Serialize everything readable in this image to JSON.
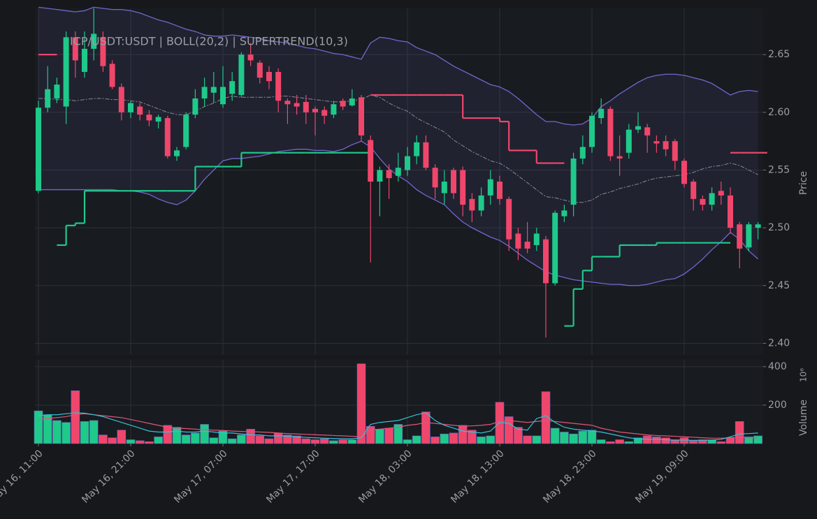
{
  "chart_data": [
    {
      "type": "candlestick",
      "title": "ICP/USDT:USDT | BOLL(20,2) | SUPERTREND(10,3)",
      "y_label": "Price",
      "ylim": [
        2.39,
        2.69
      ],
      "yticks": [
        {
          "value": 2.4,
          "label": "2.40"
        },
        2.45,
        {
          "value": 2.5,
          "label": "2.50"
        },
        2.55,
        {
          "value": 2.6,
          "label": "2.60"
        },
        2.65
      ],
      "grid": true,
      "up_color": "#1fc98a",
      "down_color": "#f0466b",
      "open": [
        2.532,
        2.604,
        2.612,
        2.605,
        2.665,
        2.635,
        2.655,
        2.665,
        2.642,
        2.622,
        2.6,
        2.605,
        2.598,
        2.592,
        2.595,
        2.562,
        2.57,
        2.598,
        2.612,
        2.617,
        2.607,
        2.616,
        2.615,
        2.65,
        2.643,
        2.635,
        2.635,
        2.61,
        2.608,
        2.609,
        2.603,
        2.602,
        2.598,
        2.61,
        2.606,
        2.613,
        2.576,
        2.54,
        2.55,
        2.545,
        2.55,
        2.562,
        2.574,
        2.552,
        2.53,
        2.55,
        2.55,
        2.525,
        2.515,
        2.528,
        2.54,
        2.525,
        2.495,
        2.488,
        2.485,
        2.49,
        2.452,
        2.51,
        2.52,
        2.56,
        2.57,
        2.595,
        2.603,
        2.562,
        2.565,
        2.585,
        2.587,
        2.575,
        2.575,
        2.575,
        2.558,
        2.54,
        2.525,
        2.52,
        2.532,
        2.528,
        2.503,
        2.483,
        2.5
      ],
      "high": [
        2.61,
        2.64,
        2.63,
        2.67,
        2.67,
        2.67,
        2.69,
        2.67,
        2.645,
        2.625,
        2.61,
        2.608,
        2.602,
        2.598,
        2.597,
        2.57,
        2.6,
        2.62,
        2.63,
        2.635,
        2.64,
        2.635,
        2.652,
        2.66,
        2.645,
        2.64,
        2.638,
        2.612,
        2.615,
        2.615,
        2.605,
        2.605,
        2.61,
        2.612,
        2.62,
        2.615,
        2.58,
        2.553,
        2.555,
        2.565,
        2.57,
        2.58,
        2.58,
        2.555,
        2.55,
        2.552,
        2.553,
        2.53,
        2.535,
        2.55,
        2.545,
        2.527,
        2.5,
        2.505,
        2.5,
        2.493,
        2.515,
        2.52,
        2.565,
        2.58,
        2.6,
        2.612,
        2.605,
        2.58,
        2.59,
        2.6,
        2.59,
        2.58,
        2.58,
        2.577,
        2.56,
        2.542,
        2.528,
        2.535,
        2.54,
        2.535,
        2.505,
        2.505,
        2.505
      ],
      "low": [
        2.53,
        2.6,
        2.608,
        2.59,
        2.63,
        2.63,
        2.645,
        2.635,
        2.62,
        2.593,
        2.595,
        2.593,
        2.588,
        2.586,
        2.56,
        2.558,
        2.568,
        2.595,
        2.605,
        2.608,
        2.604,
        2.61,
        2.613,
        2.64,
        2.625,
        2.62,
        2.6,
        2.59,
        2.598,
        2.59,
        2.58,
        2.59,
        2.595,
        2.602,
        2.605,
        2.575,
        2.47,
        2.51,
        2.525,
        2.54,
        2.545,
        2.555,
        2.55,
        2.525,
        2.52,
        2.525,
        2.51,
        2.505,
        2.51,
        2.52,
        2.52,
        2.48,
        2.472,
        2.478,
        2.48,
        2.405,
        2.45,
        2.505,
        2.51,
        2.555,
        2.565,
        2.59,
        2.558,
        2.545,
        2.56,
        2.582,
        2.565,
        2.565,
        2.562,
        2.55,
        2.535,
        2.515,
        2.515,
        2.515,
        2.52,
        2.495,
        2.465,
        2.48,
        2.49
      ],
      "close": [
        2.604,
        2.62,
        2.624,
        2.665,
        2.645,
        2.655,
        2.668,
        2.64,
        2.622,
        2.6,
        2.608,
        2.598,
        2.593,
        2.596,
        2.562,
        2.567,
        2.598,
        2.612,
        2.622,
        2.622,
        2.622,
        2.627,
        2.65,
        2.645,
        2.63,
        2.627,
        2.61,
        2.607,
        2.605,
        2.6,
        2.6,
        2.597,
        2.607,
        2.605,
        2.612,
        2.58,
        2.54,
        2.55,
        2.543,
        2.552,
        2.562,
        2.574,
        2.552,
        2.535,
        2.54,
        2.53,
        2.52,
        2.515,
        2.528,
        2.542,
        2.525,
        2.49,
        2.482,
        2.482,
        2.495,
        2.452,
        2.513,
        2.515,
        2.56,
        2.57,
        2.597,
        2.603,
        2.562,
        2.56,
        2.585,
        2.588,
        2.58,
        2.573,
        2.568,
        2.558,
        2.538,
        2.525,
        2.52,
        2.53,
        2.528,
        2.5,
        2.482,
        2.503,
        2.503
      ],
      "bollinger": {
        "color": "#7466cc",
        "middle_color": "#8a8a94",
        "fill": "rgba(110,100,200,0.10)",
        "upper": [
          2.691,
          2.69,
          2.689,
          2.688,
          2.687,
          2.688,
          2.691,
          2.69,
          2.689,
          2.689,
          2.688,
          2.686,
          2.683,
          2.68,
          2.678,
          2.675,
          2.672,
          2.67,
          2.667,
          2.666,
          2.666,
          2.667,
          2.666,
          2.665,
          2.664,
          2.662,
          2.661,
          2.66,
          2.658,
          2.656,
          2.655,
          2.653,
          2.651,
          2.65,
          2.648,
          2.646,
          2.66,
          2.665,
          2.664,
          2.662,
          2.661,
          2.656,
          2.653,
          2.65,
          2.645,
          2.64,
          2.636,
          2.632,
          2.628,
          2.624,
          2.622,
          2.618,
          2.612,
          2.605,
          2.598,
          2.592,
          2.592,
          2.59,
          2.589,
          2.59,
          2.595,
          2.605,
          2.61,
          2.616,
          2.621,
          2.626,
          2.63,
          2.632,
          2.633,
          2.633,
          2.632,
          2.63,
          2.628,
          2.625,
          2.62,
          2.615,
          2.618,
          2.619,
          2.618
        ],
        "middle": [
          2.612,
          2.612,
          2.611,
          2.611,
          2.61,
          2.611,
          2.612,
          2.612,
          2.611,
          2.611,
          2.61,
          2.609,
          2.606,
          2.603,
          2.6,
          2.598,
          2.598,
          2.601,
          2.605,
          2.608,
          2.612,
          2.614,
          2.613,
          2.613,
          2.613,
          2.613,
          2.614,
          2.614,
          2.613,
          2.612,
          2.611,
          2.61,
          2.609,
          2.609,
          2.61,
          2.611,
          2.615,
          2.613,
          2.608,
          2.604,
          2.601,
          2.595,
          2.591,
          2.587,
          2.583,
          2.576,
          2.571,
          2.566,
          2.562,
          2.558,
          2.556,
          2.551,
          2.545,
          2.539,
          2.533,
          2.527,
          2.526,
          2.524,
          2.522,
          2.522,
          2.524,
          2.529,
          2.531,
          2.534,
          2.536,
          2.538,
          2.541,
          2.543,
          2.544,
          2.545,
          2.546,
          2.548,
          2.551,
          2.553,
          2.554,
          2.556,
          2.554,
          2.55,
          2.546
        ],
        "lower": [
          2.533,
          2.533,
          2.533,
          2.533,
          2.533,
          2.533,
          2.533,
          2.533,
          2.533,
          2.532,
          2.532,
          2.531,
          2.529,
          2.525,
          2.522,
          2.52,
          2.524,
          2.532,
          2.542,
          2.55,
          2.558,
          2.56,
          2.56,
          2.561,
          2.562,
          2.564,
          2.566,
          2.567,
          2.568,
          2.568,
          2.567,
          2.567,
          2.566,
          2.568,
          2.572,
          2.575,
          2.57,
          2.56,
          2.551,
          2.545,
          2.54,
          2.533,
          2.528,
          2.524,
          2.52,
          2.512,
          2.505,
          2.5,
          2.496,
          2.492,
          2.489,
          2.484,
          2.478,
          2.472,
          2.467,
          2.462,
          2.459,
          2.457,
          2.455,
          2.454,
          2.453,
          2.452,
          2.451,
          2.451,
          2.45,
          2.45,
          2.451,
          2.453,
          2.455,
          2.456,
          2.46,
          2.466,
          2.473,
          2.481,
          2.488,
          2.496,
          2.49,
          2.48,
          2.473
        ]
      },
      "supertrend": {
        "up_color": "#1fc98a",
        "down_color": "#f0466b",
        "up": [
          null,
          null,
          2.485,
          2.502,
          2.504,
          2.532,
          2.532,
          2.532,
          2.532,
          2.532,
          2.532,
          2.532,
          2.532,
          2.532,
          2.532,
          2.532,
          2.532,
          2.553,
          2.553,
          2.553,
          2.553,
          2.553,
          2.565,
          2.565,
          2.565,
          2.565,
          2.565,
          2.565,
          2.565,
          2.565,
          2.565,
          2.565,
          2.565,
          2.565,
          2.565,
          2.565,
          null,
          null,
          null,
          null,
          null,
          null,
          null,
          null,
          null,
          null,
          null,
          null,
          null,
          null,
          null,
          null,
          null,
          null,
          null,
          null,
          null,
          2.415,
          2.447,
          2.463,
          2.475,
          2.475,
          2.475,
          2.485,
          2.485,
          2.485,
          2.485,
          2.487,
          2.487,
          2.487,
          2.487,
          2.487,
          2.487,
          2.487,
          2.487,
          null,
          null,
          null,
          null
        ],
        "down": [
          2.65,
          2.65,
          null,
          null,
          null,
          null,
          null,
          null,
          null,
          null,
          null,
          null,
          null,
          null,
          null,
          null,
          null,
          null,
          null,
          null,
          null,
          null,
          null,
          null,
          null,
          null,
          null,
          null,
          null,
          null,
          null,
          null,
          null,
          null,
          null,
          null,
          2.615,
          2.615,
          2.615,
          2.615,
          2.615,
          2.615,
          2.615,
          2.615,
          2.615,
          2.615,
          2.595,
          2.595,
          2.595,
          2.595,
          2.592,
          2.567,
          2.567,
          2.567,
          2.556,
          2.556,
          2.556,
          null,
          null,
          null,
          null,
          null,
          null,
          null,
          null,
          null,
          null,
          null,
          null,
          null,
          null,
          null,
          null,
          null,
          null,
          2.565,
          2.565,
          2.565,
          2.565
        ]
      }
    },
    {
      "type": "bar",
      "y_label": "Volume",
      "y_multiplier": "10⁶",
      "categories": [
        "May 16, 11:00",
        null,
        null,
        null,
        null,
        null,
        null,
        null,
        null,
        null,
        "May 16, 21:00",
        null,
        null,
        null,
        null,
        null,
        null,
        null,
        null,
        null,
        "May 17, 07:00",
        null,
        null,
        null,
        null,
        null,
        null,
        null,
        null,
        null,
        "May 17, 17:00",
        null,
        null,
        null,
        null,
        null,
        null,
        null,
        null,
        null,
        "May 18, 03:00",
        null,
        null,
        null,
        null,
        null,
        null,
        null,
        null,
        null,
        "May 18, 13:00",
        null,
        null,
        null,
        null,
        null,
        null,
        null,
        null,
        null,
        "May 18, 23:00",
        null,
        null,
        null,
        null,
        null,
        null,
        null,
        null,
        null,
        "May 19, 09:00",
        null,
        null,
        null,
        null,
        null,
        null,
        null,
        null
      ],
      "values": [
        170,
        150,
        120,
        110,
        275,
        115,
        120,
        45,
        30,
        70,
        20,
        15,
        10,
        35,
        95,
        85,
        45,
        55,
        100,
        30,
        65,
        25,
        45,
        75,
        40,
        25,
        55,
        45,
        40,
        25,
        20,
        25,
        15,
        20,
        20,
        415,
        90,
        75,
        80,
        100,
        20,
        40,
        165,
        35,
        50,
        55,
        95,
        70,
        35,
        40,
        215,
        140,
        85,
        40,
        40,
        270,
        80,
        60,
        50,
        65,
        70,
        20,
        10,
        20,
        10,
        30,
        40,
        35,
        30,
        20,
        30,
        15,
        20,
        20,
        10,
        30,
        115,
        35,
        40
      ],
      "ylim": [
        0,
        436
      ],
      "yticks": [
        200,
        400
      ],
      "grid": true,
      "ma_fast": {
        "color": "#31c3d8",
        "values": [
          145,
          150,
          150,
          155,
          160,
          158,
          150,
          140,
          125,
          110,
          95,
          80,
          65,
          60,
          60,
          65,
          60,
          60,
          65,
          60,
          55,
          55,
          50,
          45,
          45,
          40,
          40,
          38,
          35,
          32,
          30,
          28,
          26,
          25,
          25,
          30,
          100,
          110,
          115,
          120,
          135,
          150,
          160,
          120,
          95,
          80,
          65,
          60,
          55,
          65,
          110,
          105,
          75,
          70,
          130,
          145,
          110,
          85,
          75,
          70,
          65,
          60,
          50,
          40,
          30,
          25,
          22,
          22,
          20,
          18,
          18,
          17,
          17,
          18,
          22,
          35,
          50,
          52,
          55
        ]
      },
      "ma_slow": {
        "color": "#e0557a",
        "values": [
          125,
          130,
          135,
          140,
          150,
          155,
          150,
          145,
          140,
          135,
          125,
          115,
          105,
          95,
          85,
          80,
          78,
          75,
          72,
          70,
          68,
          65,
          63,
          62,
          60,
          58,
          55,
          52,
          50,
          48,
          46,
          44,
          42,
          40,
          38,
          36,
          70,
          75,
          80,
          85,
          95,
          100,
          110,
          105,
          100,
          95,
          90,
          92,
          95,
          100,
          115,
          120,
          115,
          110,
          115,
          120,
          115,
          110,
          105,
          100,
          95,
          80,
          70,
          60,
          55,
          50,
          45,
          42,
          40,
          38,
          35,
          33,
          30,
          28,
          28,
          30,
          32,
          30,
          30
        ]
      }
    }
  ]
}
